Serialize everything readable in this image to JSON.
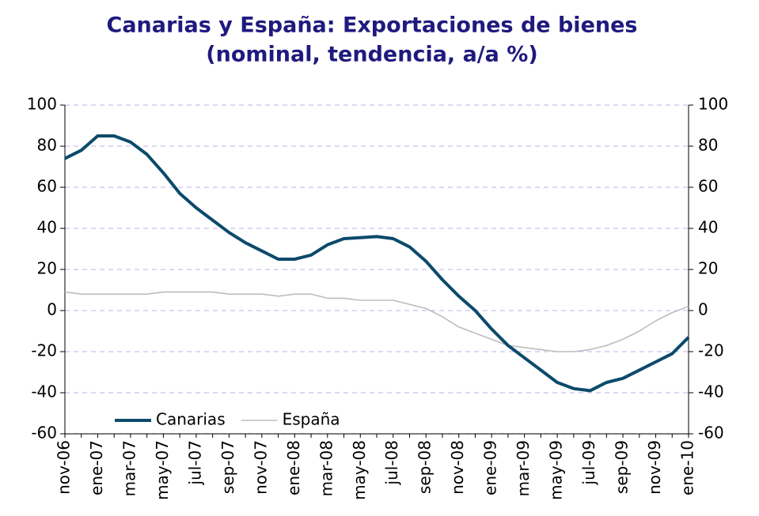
{
  "chart_data": {
    "type": "line",
    "title": [
      "Canarias y España: Exportaciones de bienes",
      "(nominal, tendencia, a/a %)"
    ],
    "categories": [
      "nov-06",
      null,
      "ene-07",
      null,
      "mar-07",
      null,
      "may-07",
      null,
      "jul-07",
      null,
      "sep-07",
      null,
      "nov-07",
      null,
      "ene-08",
      null,
      "mar-08",
      null,
      "may-08",
      null,
      "jul-08",
      null,
      "sep-08",
      null,
      "nov-08",
      null,
      "ene-09",
      null,
      "mar-09",
      null,
      "may-09",
      null,
      "jul-09",
      null,
      "sep-09",
      null,
      "nov-09",
      null,
      "ene-10"
    ],
    "series": [
      {
        "name": "Canarias",
        "color": "#0b4a6b",
        "values": [
          74,
          78,
          85,
          85,
          82,
          76,
          67,
          57,
          50,
          44,
          38,
          33,
          29,
          25,
          25,
          27,
          32,
          35,
          35.5,
          36,
          35,
          31,
          24,
          15,
          7,
          0,
          -9,
          -17,
          -23,
          -29,
          -35,
          -38,
          -39,
          -35,
          -33,
          -29,
          -25,
          -21,
          -13
        ]
      },
      {
        "name": "España",
        "color": "#bdbdbd",
        "values": [
          9,
          8,
          8,
          8,
          8,
          8,
          9,
          9,
          9,
          9,
          8,
          8,
          8,
          7,
          8,
          8,
          6,
          6,
          5,
          5,
          5,
          3,
          1,
          -3,
          -8,
          -11,
          -14,
          -17,
          -18,
          -19,
          -20,
          -20,
          -19,
          -17,
          -14,
          -10,
          -5,
          -1,
          2
        ]
      }
    ],
    "ylim": [
      -60,
      100
    ],
    "yticks": [
      -60,
      -40,
      -20,
      0,
      20,
      40,
      60,
      80,
      100
    ],
    "grid": true,
    "legend": "bottom-left"
  }
}
